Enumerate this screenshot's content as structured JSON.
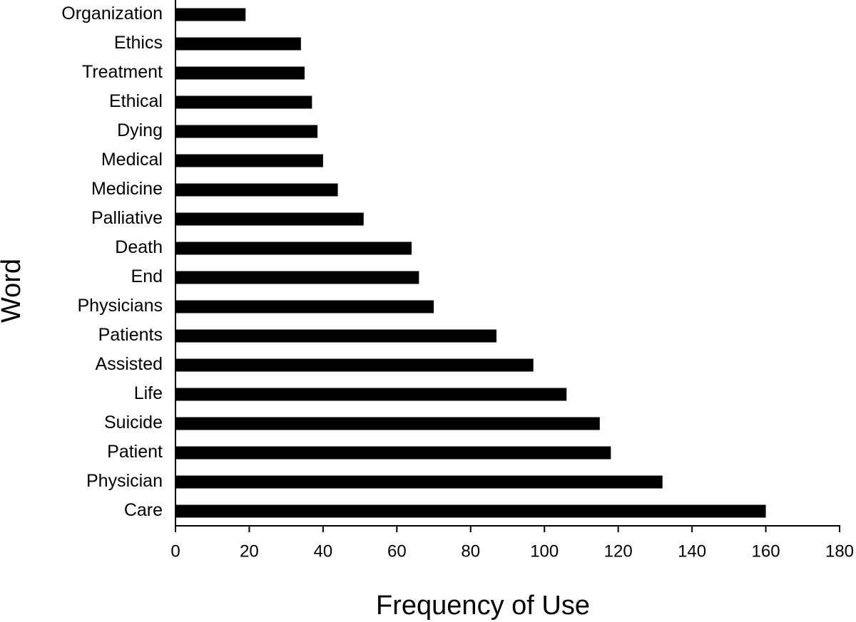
{
  "chart_data": {
    "type": "hbar",
    "categories": [
      "Organization",
      "Ethics",
      "Treatment",
      "Ethical",
      "Dying",
      "Medical",
      "Medicine",
      "Palliative",
      "Death",
      "End",
      "Physicians",
      "Patients",
      "Assisted",
      "Life",
      "Suicide",
      "Patient",
      "Physician",
      "Care"
    ],
    "values": [
      19,
      34,
      35,
      37,
      38.5,
      40,
      44,
      51,
      64,
      66,
      70,
      87,
      97,
      106,
      115,
      118,
      132,
      160
    ],
    "color": "#000000",
    "x_label": "Frequency of Use",
    "y_label": "Word",
    "xlim": [
      0,
      180
    ],
    "xticks": [
      0,
      20,
      40,
      60,
      80,
      100,
      120,
      140,
      160,
      180
    ]
  }
}
